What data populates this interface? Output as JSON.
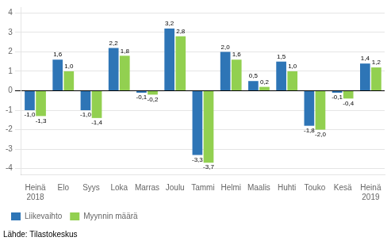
{
  "chart_data": {
    "type": "bar",
    "categories": [
      "Heinä\n2018",
      "Elo",
      "Syys",
      "Loka",
      "Marras",
      "Joulu",
      "Tammi",
      "Helmi",
      "Maalis",
      "Huhti",
      "Touko",
      "Kesä",
      "Heinä\n2019"
    ],
    "series": [
      {
        "name": "Liikevaihto",
        "color": "#2E75B6",
        "values": [
          -1.0,
          1.6,
          -1.0,
          2.2,
          -0.1,
          3.2,
          -3.3,
          2.0,
          0.5,
          1.5,
          -1.8,
          -0.1,
          1.4
        ],
        "value_labels": [
          "-1,0",
          "1,6",
          "-1,0",
          "2,2",
          "-0,1",
          "3,2",
          "-3,3",
          "2,0",
          "0,5",
          "1,5",
          "-1,8",
          "-0,1",
          "1,4"
        ]
      },
      {
        "name": "Myynnin määrä",
        "color": "#92D050",
        "values": [
          -1.3,
          1.0,
          -1.4,
          1.8,
          -0.2,
          2.8,
          -3.7,
          1.6,
          0.2,
          1.0,
          -2.0,
          -0.4,
          1.2
        ],
        "value_labels": [
          "-1,3",
          "1,0",
          "-1,4",
          "1,8",
          "-0,2",
          "2,8",
          "-3,7",
          "1,6",
          "0,2",
          "1,0",
          "-2,0",
          "-0,4",
          "1,2"
        ]
      }
    ],
    "ylim": [
      -4.3,
      4.3
    ],
    "yticks": [
      -4,
      -3,
      -2,
      -1,
      0,
      1,
      2,
      3,
      4
    ],
    "grid": true,
    "legend": "lower left",
    "data_labels": true,
    "annotations": [
      "Lähde: Tilastokeskus"
    ]
  }
}
